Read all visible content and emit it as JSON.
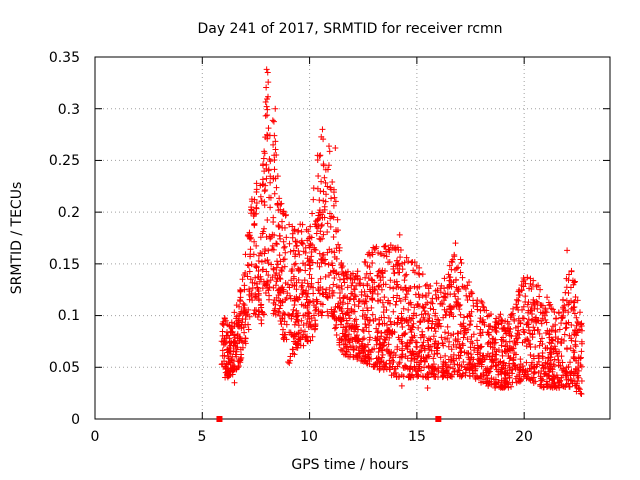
{
  "chart_data": {
    "type": "scatter",
    "title": "Day 241 of 2017, SRMTID for receiver rcmn",
    "xlabel": "GPS time / hours",
    "ylabel": "SRMTID / TECUs",
    "xlim": [
      0,
      24
    ],
    "ylim": [
      0,
      0.35
    ],
    "xticks": [
      0,
      5,
      10,
      15,
      20
    ],
    "xtick_labels": [
      "0",
      "5",
      "10",
      "15",
      "20"
    ],
    "yticks": [
      0,
      0.05,
      0.1,
      0.15,
      0.2,
      0.25,
      0.3,
      0.35
    ],
    "ytick_labels": [
      "0",
      "0.05",
      "0.1",
      "0.15",
      "0.2",
      "0.25",
      "0.3",
      "0.35"
    ],
    "grid": true,
    "legend": "none",
    "marker": "+",
    "color": "#ff0000",
    "baseline_markers": {
      "marker": "square",
      "x": [
        5.8,
        16.0
      ],
      "y": 0
    },
    "series": [
      {
        "name": "SRMTID",
        "envelope": [
          [
            5.9,
            0.04,
            0.11
          ],
          [
            6.3,
            0.04,
            0.09
          ],
          [
            6.7,
            0.05,
            0.12
          ],
          [
            7.0,
            0.07,
            0.16
          ],
          [
            7.4,
            0.1,
            0.23
          ],
          [
            7.8,
            0.09,
            0.24
          ],
          [
            8.0,
            0.12,
            0.34
          ],
          [
            8.3,
            0.1,
            0.3
          ],
          [
            8.6,
            0.1,
            0.22
          ],
          [
            9.0,
            0.05,
            0.19
          ],
          [
            9.5,
            0.07,
            0.19
          ],
          [
            10.0,
            0.07,
            0.19
          ],
          [
            10.5,
            0.1,
            0.28
          ],
          [
            11.0,
            0.1,
            0.26
          ],
          [
            11.5,
            0.06,
            0.15
          ],
          [
            12.0,
            0.06,
            0.14
          ],
          [
            13.0,
            0.05,
            0.17
          ],
          [
            14.0,
            0.04,
            0.17
          ],
          [
            15.0,
            0.04,
            0.15
          ],
          [
            16.0,
            0.04,
            0.13
          ],
          [
            16.8,
            0.04,
            0.17
          ],
          [
            17.5,
            0.04,
            0.13
          ],
          [
            18.5,
            0.03,
            0.1
          ],
          [
            19.5,
            0.03,
            0.11
          ],
          [
            20.0,
            0.04,
            0.14
          ],
          [
            20.8,
            0.03,
            0.13
          ],
          [
            21.5,
            0.03,
            0.1
          ],
          [
            22.2,
            0.03,
            0.16
          ],
          [
            22.7,
            0.02,
            0.09
          ]
        ],
        "highlights": [
          [
            8.0,
            0.338
          ],
          [
            8.05,
            0.335
          ],
          [
            8.4,
            0.3
          ],
          [
            8.0,
            0.302
          ],
          [
            10.6,
            0.28
          ],
          [
            11.2,
            0.262
          ],
          [
            10.5,
            0.255
          ],
          [
            8.3,
            0.265
          ],
          [
            8.35,
            0.255
          ],
          [
            14.2,
            0.178
          ],
          [
            16.8,
            0.17
          ],
          [
            22.0,
            0.163
          ],
          [
            15.5,
            0.03
          ],
          [
            14.3,
            0.032
          ],
          [
            6.5,
            0.035
          ]
        ]
      }
    ]
  }
}
